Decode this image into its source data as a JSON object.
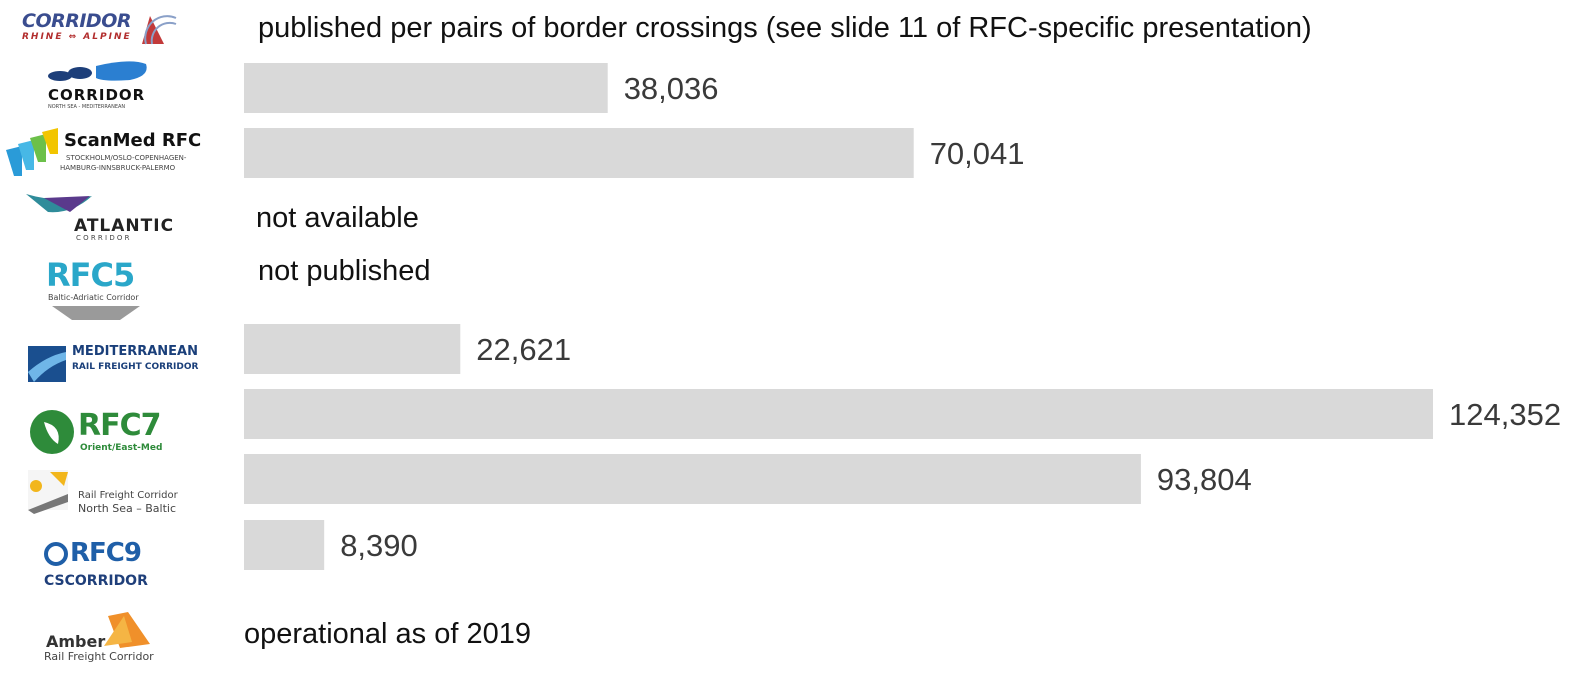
{
  "chart_data": {
    "type": "bar",
    "orientation": "horizontal",
    "title": "",
    "xlabel": "",
    "ylabel": "",
    "xlim": [
      0,
      124352
    ],
    "grid": false,
    "categories": [
      "Corridor Rhine-Alpine",
      "Corridor North Sea - Mediterranean",
      "ScanMed RFC",
      "Atlantic Corridor",
      "RFC5",
      "Mediterranean Rail Freight Corridor",
      "RFC7",
      "Rail Freight Corridor North Sea – Baltic",
      "RFC9",
      "Amber"
    ],
    "values": [
      null,
      38036,
      70041,
      null,
      null,
      22621,
      124352,
      93804,
      8390,
      null
    ],
    "value_labels": [
      "",
      "38,036",
      "70,041",
      "",
      "",
      "22,621",
      "124,352",
      "93,804",
      "8,390",
      ""
    ],
    "bar_color": "#d9d9d9"
  },
  "notes": {
    "rhine_alpine": "published per pairs of border crossings (see slide 11 of RFC-specific presentation)",
    "atlantic": "not available",
    "rfc5": "not published",
    "amber": "operational as of 2019"
  },
  "logos": {
    "rhine_alpine": {
      "main": "CORRIDOR",
      "sub": "RHINE ⇔ ALPINE",
      "icon": "rhine-alpine-logo-icon"
    },
    "nsm": {
      "main": "CORRIDOR",
      "sub": "NORTH SEA - MEDITERRANEAN",
      "icon": "north-sea-med-logo-icon"
    },
    "scanmed": {
      "main": "ScanMed RFC",
      "sub1": "STOCKHOLM/OSLO-COPENHAGEN-",
      "sub2": "HAMBURG-INNSBRUCK-PALERMO",
      "icon": "scanmed-logo-icon"
    },
    "atlantic": {
      "main": "ATLANTIC",
      "sub": "C O R R I D O R",
      "icon": "atlantic-logo-icon"
    },
    "rfc5": {
      "main": "RFC5",
      "sub": "Baltic-Adriatic Corridor",
      "icon": "rfc5-logo-icon"
    },
    "med": {
      "main": "MEDITERRANEAN",
      "sub": "RAIL FREIGHT CORRIDOR",
      "icon": "mediterranean-logo-icon"
    },
    "rfc7": {
      "main": "RFC7",
      "sub": "Orient/East-Med",
      "icon": "rfc7-logo-icon"
    },
    "nsb": {
      "main": "Rail Freight Corridor",
      "sub": "North Sea – Baltic",
      "icon": "north-sea-baltic-logo-icon"
    },
    "rfc9": {
      "main": "RFC9",
      "sub": "CSCORRIDOR",
      "icon": "rfc9-logo-icon"
    },
    "amber": {
      "main": "Amber",
      "sub": "Rail Freight Corridor",
      "icon": "amber-logo-icon"
    }
  }
}
